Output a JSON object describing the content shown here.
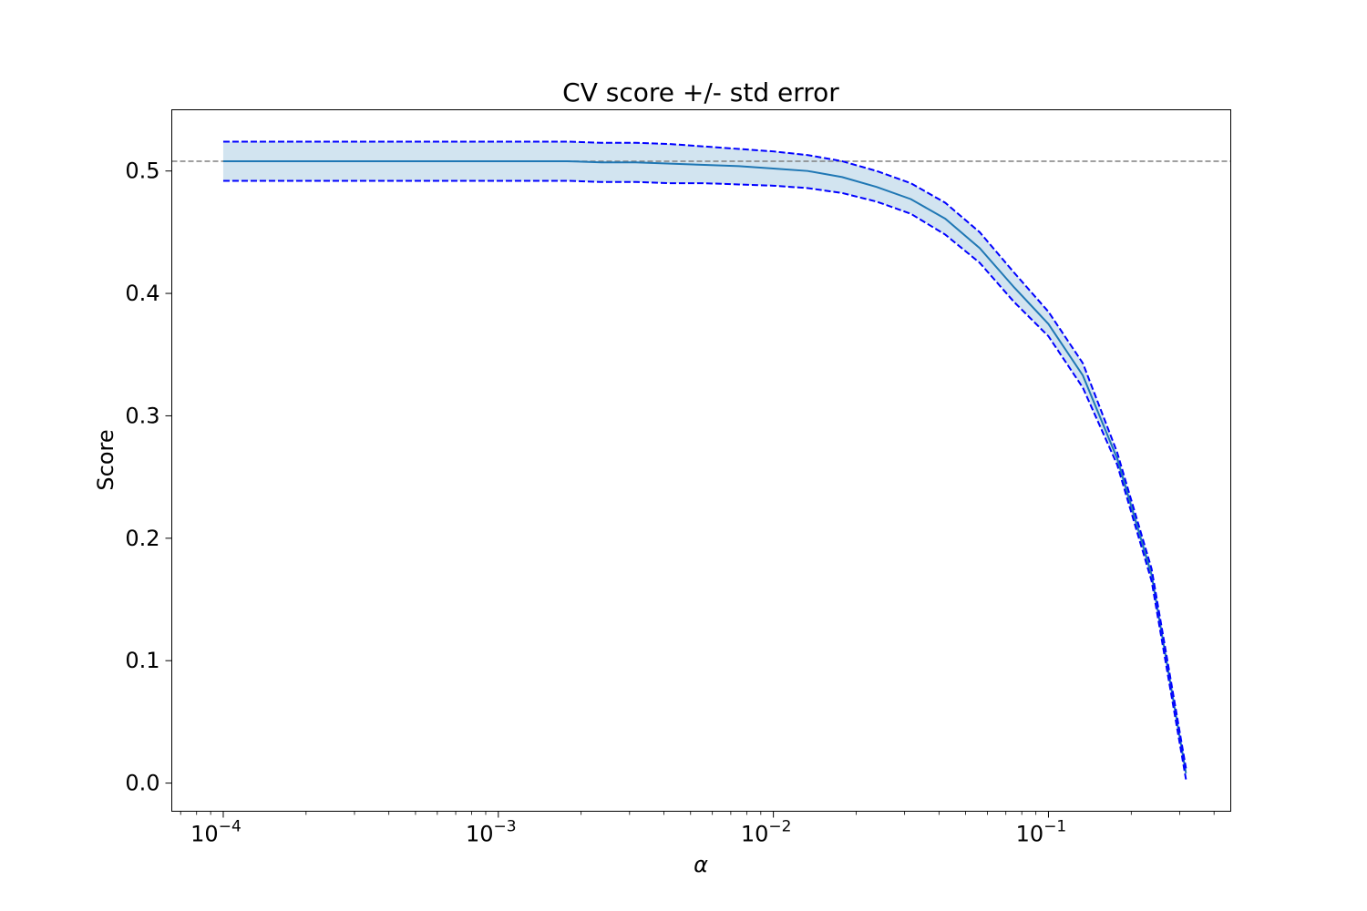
{
  "chart_data": {
    "type": "line",
    "title": "CV score +/- std error",
    "xlabel": "α",
    "ylabel": "Score",
    "x_scale": "log",
    "xlim": [
      6.5e-05,
      0.46
    ],
    "ylim": [
      -0.023,
      0.55
    ],
    "x_ticks": [
      {
        "value": 0.0001,
        "base": "10",
        "exp": "−4"
      },
      {
        "value": 0.001,
        "base": "10",
        "exp": "−3"
      },
      {
        "value": 0.01,
        "base": "10",
        "exp": "−2"
      },
      {
        "value": 0.1,
        "base": "10",
        "exp": "−1"
      }
    ],
    "y_ticks": [
      "0.0",
      "0.1",
      "0.2",
      "0.3",
      "0.4",
      "0.5"
    ],
    "grid": false,
    "legend": "none",
    "reference_line": {
      "y": 0.508,
      "style": "dashed",
      "color": "#808080"
    },
    "x": [
      0.0001,
      0.000133,
      0.000178,
      0.000237,
      0.000316,
      0.000422,
      0.000562,
      0.00075,
      0.001,
      0.001334,
      0.001778,
      0.002371,
      0.003162,
      0.004217,
      0.005623,
      0.007499,
      0.01,
      0.013335,
      0.017783,
      0.023714,
      0.031623,
      0.04217,
      0.056234,
      0.074989,
      0.1,
      0.133352,
      0.177828,
      0.237137,
      0.316228
    ],
    "series": [
      {
        "role": "mean",
        "color": "#1f77b4",
        "style": "solid",
        "values": [
          0.508,
          0.508,
          0.508,
          0.508,
          0.508,
          0.508,
          0.508,
          0.508,
          0.508,
          0.508,
          0.508,
          0.507,
          0.507,
          0.506,
          0.505,
          0.504,
          0.502,
          0.5,
          0.495,
          0.487,
          0.477,
          0.461,
          0.437,
          0.405,
          0.375,
          0.333,
          0.265,
          0.17,
          0.008
        ]
      },
      {
        "role": "upper",
        "color": "#0000ff",
        "style": "dashed",
        "values": [
          0.524,
          0.524,
          0.524,
          0.524,
          0.524,
          0.524,
          0.524,
          0.524,
          0.524,
          0.524,
          0.524,
          0.523,
          0.523,
          0.522,
          0.52,
          0.518,
          0.516,
          0.513,
          0.508,
          0.5,
          0.49,
          0.474,
          0.45,
          0.417,
          0.385,
          0.343,
          0.27,
          0.175,
          0.012
        ]
      },
      {
        "role": "lower",
        "color": "#0000ff",
        "style": "dashed",
        "values": [
          0.492,
          0.492,
          0.492,
          0.492,
          0.492,
          0.492,
          0.492,
          0.492,
          0.492,
          0.492,
          0.492,
          0.491,
          0.491,
          0.49,
          0.49,
          0.489,
          0.488,
          0.486,
          0.482,
          0.475,
          0.465,
          0.448,
          0.425,
          0.393,
          0.365,
          0.323,
          0.26,
          0.165,
          0.003
        ]
      }
    ],
    "band": {
      "between": [
        "upper",
        "lower"
      ],
      "color": "#1f77b4",
      "opacity": 0.2
    }
  }
}
